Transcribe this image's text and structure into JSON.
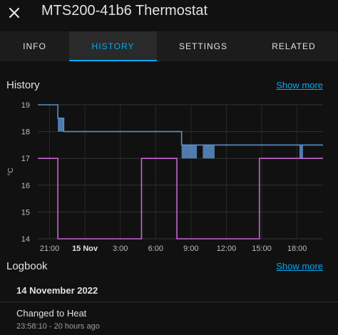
{
  "header": {
    "close_icon": "close-icon",
    "title": "MTS200-41b6 Thermostat"
  },
  "tabs": [
    {
      "label": "INFO",
      "active": false
    },
    {
      "label": "HISTORY",
      "active": true
    },
    {
      "label": "SETTINGS",
      "active": false
    },
    {
      "label": "RELATED",
      "active": false
    }
  ],
  "history": {
    "title": "History",
    "show_more": "Show more"
  },
  "logbook": {
    "title": "Logbook",
    "show_more": "Show more",
    "date": "14 November 2022",
    "entries": [
      {
        "title": "Changed to Heat",
        "time": "23:58:10 - 20 hours ago"
      }
    ]
  },
  "colors": {
    "accent": "#03a9f4",
    "temperature": "#5b8fc9",
    "heating": "#c864d6"
  },
  "chart_data": {
    "type": "line",
    "ylabel": "°C",
    "ylim": [
      14,
      19
    ],
    "y_ticks": [
      "19",
      "18",
      "17",
      "16",
      "15",
      "14"
    ],
    "x_ticks": [
      "21:00",
      "15 Nov",
      "3:00",
      "6:00",
      "9:00",
      "12:00",
      "15:00",
      "18:00"
    ],
    "x_tick_bold": "15 Nov",
    "xlim_hours": [
      20.0,
      44.2
    ],
    "grid": true,
    "series": [
      {
        "role": "temperature",
        "x_hours": [
          20.0,
          21.7,
          21.7,
          22.2,
          22.2,
          32.2,
          32.2,
          33.5,
          33.5,
          44.2
        ],
        "values": [
          19.0,
          19.0,
          18.5,
          18.5,
          18.0,
          18.0,
          17.5,
          17.5,
          17.5,
          17.5
        ],
        "fluctuation_bands": [
          [
            21.7,
            22.2,
            18.0,
            18.5
          ],
          [
            32.2,
            33.5,
            17.0,
            17.5
          ],
          [
            34.0,
            35.0,
            17.0,
            17.5
          ],
          [
            42.2,
            42.5,
            17.0,
            17.5
          ]
        ]
      },
      {
        "role": "heating",
        "x_hours": [
          20.0,
          21.7,
          21.7,
          28.8,
          28.8,
          31.8,
          31.8,
          38.8,
          38.8,
          44.2
        ],
        "values": [
          17.0,
          17.0,
          14.0,
          14.0,
          17.0,
          17.0,
          14.0,
          14.0,
          17.0,
          17.0
        ]
      }
    ]
  }
}
